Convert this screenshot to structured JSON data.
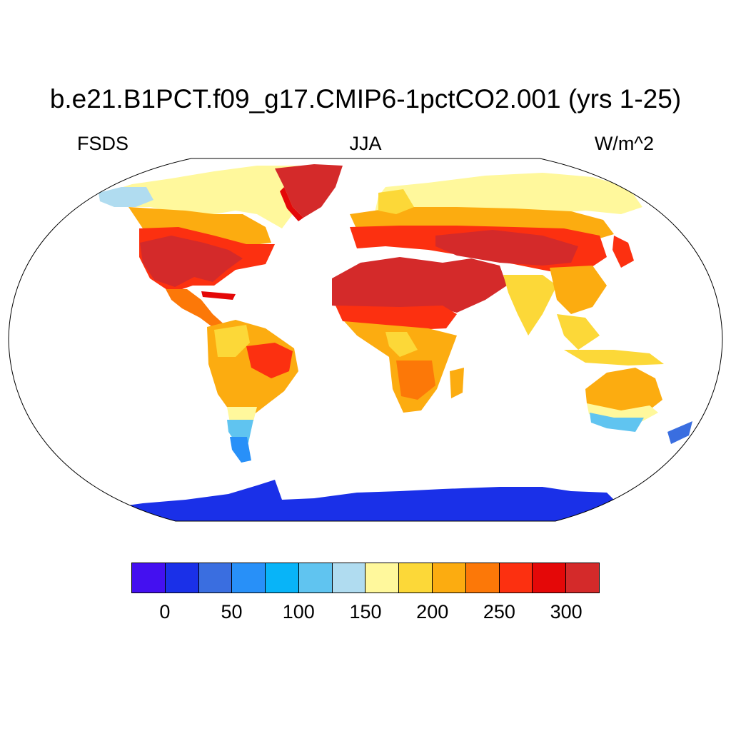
{
  "title": "b.e21.B1PCT.f09_g17.CMIP6-1pctCO2.001 (yrs 1-25)",
  "left_label": "FSDS",
  "center_label": "JJA",
  "right_label": "W/m^2",
  "colorbar": {
    "colors": [
      "#4410f0",
      "#1a30e8",
      "#3a6ee0",
      "#2890f8",
      "#08b4f8",
      "#60c4f0",
      "#b0dcf0",
      "#fff89c",
      "#fcd838",
      "#fcac10",
      "#fc7808",
      "#fc3010",
      "#e40808",
      "#d42a2a"
    ],
    "tick_labels": [
      "0",
      "50",
      "100",
      "150",
      "200",
      "250",
      "300"
    ]
  }
}
